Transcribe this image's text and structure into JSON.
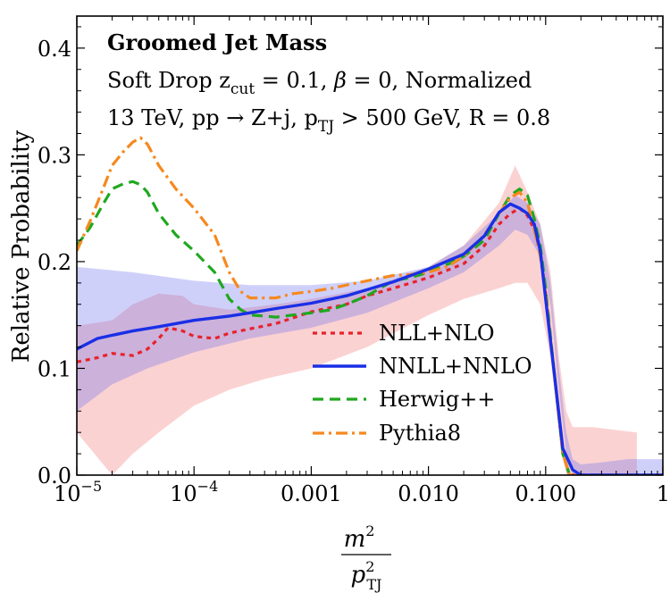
{
  "chart_data": {
    "type": "line",
    "title": "Groomed Jet Mass",
    "subtitle_lines": [
      "Soft Drop z_cut = 0.1, β = 0, Normalized",
      "13 TeV, pp → Z+j, p_TJ > 500 GeV, R = 0.8"
    ],
    "subtitle_parts": {
      "line1_a": "Soft Drop z",
      "line1_sub": "cut",
      "line1_b": " = 0.1, ",
      "line1_beta": "β",
      "line1_c": " = 0, Normalized",
      "line2_a": "13 TeV, pp → Z+j, p",
      "line2_sub": "TJ",
      "line2_b": " > 500 GeV, R = 0.8"
    },
    "ylabel": "Relative Probability",
    "xlabel": "m²/p²_TJ",
    "xlabel_parts": {
      "num": "m",
      "num_sup": "2",
      "den": "p",
      "den_sup": "2",
      "den_sub": "TJ"
    },
    "xscale": "log",
    "xlim": [
      1e-05,
      1
    ],
    "ylim": [
      0,
      0.43
    ],
    "xticks": [
      {
        "value": 1e-05,
        "label": "10",
        "exp": "−5"
      },
      {
        "value": 0.0001,
        "label": "10",
        "exp": "−4"
      },
      {
        "value": 0.001,
        "label": "0.001"
      },
      {
        "value": 0.01,
        "label": "0.010"
      },
      {
        "value": 0.1,
        "label": "0.100"
      },
      {
        "value": 1,
        "label": "1"
      }
    ],
    "yticks": [
      {
        "value": 0.0,
        "label": "0.0"
      },
      {
        "value": 0.1,
        "label": "0.1"
      },
      {
        "value": 0.2,
        "label": "0.2"
      },
      {
        "value": 0.3,
        "label": "0.3"
      },
      {
        "value": 0.4,
        "label": "0.4"
      }
    ],
    "legend_position": "center-right",
    "bands": [
      {
        "name": "NNLL+NNLO uncertainty",
        "color": "#6a6ef0",
        "opacity": 0.32,
        "upper": [
          [
            1e-05,
            0.195
          ],
          [
            3e-05,
            0.19
          ],
          [
            0.0001,
            0.182
          ],
          [
            0.0003,
            0.178
          ],
          [
            0.001,
            0.178
          ],
          [
            0.003,
            0.182
          ],
          [
            0.01,
            0.195
          ],
          [
            0.02,
            0.215
          ],
          [
            0.04,
            0.245
          ],
          [
            0.055,
            0.262
          ],
          [
            0.07,
            0.255
          ],
          [
            0.09,
            0.235
          ],
          [
            0.11,
            0.18
          ],
          [
            0.13,
            0.1
          ],
          [
            0.15,
            0.04
          ],
          [
            0.17,
            0.015
          ],
          [
            0.2,
            0.01
          ],
          [
            0.3,
            0.012
          ],
          [
            0.5,
            0.015
          ],
          [
            1,
            0.015
          ]
        ],
        "lower": [
          [
            1e-05,
            0.06
          ],
          [
            2e-05,
            0.085
          ],
          [
            4e-05,
            0.1
          ],
          [
            0.0001,
            0.115
          ],
          [
            0.0003,
            0.128
          ],
          [
            0.001,
            0.138
          ],
          [
            0.003,
            0.152
          ],
          [
            0.01,
            0.175
          ],
          [
            0.02,
            0.19
          ],
          [
            0.04,
            0.215
          ],
          [
            0.055,
            0.23
          ],
          [
            0.07,
            0.225
          ],
          [
            0.09,
            0.205
          ],
          [
            0.11,
            0.16
          ],
          [
            0.13,
            0.08
          ],
          [
            0.15,
            0.02
          ],
          [
            0.17,
            0.0
          ],
          [
            0.2,
            0.0
          ],
          [
            1,
            0.0
          ]
        ]
      },
      {
        "name": "NLL+NLO uncertainty",
        "color": "#f26a6a",
        "opacity": 0.3,
        "upper": [
          [
            1e-05,
            0.14
          ],
          [
            2e-05,
            0.145
          ],
          [
            3e-05,
            0.16
          ],
          [
            5e-05,
            0.17
          ],
          [
            8e-05,
            0.168
          ],
          [
            0.0001,
            0.16
          ],
          [
            0.0002,
            0.155
          ],
          [
            0.0005,
            0.16
          ],
          [
            0.001,
            0.165
          ],
          [
            0.003,
            0.175
          ],
          [
            0.01,
            0.195
          ],
          [
            0.02,
            0.215
          ],
          [
            0.04,
            0.255
          ],
          [
            0.055,
            0.29
          ],
          [
            0.07,
            0.265
          ],
          [
            0.09,
            0.235
          ],
          [
            0.11,
            0.19
          ],
          [
            0.13,
            0.11
          ],
          [
            0.15,
            0.06
          ],
          [
            0.17,
            0.045
          ],
          [
            0.25,
            0.045
          ],
          [
            0.6,
            0.04
          ]
        ],
        "lower": [
          [
            1e-05,
            0.04
          ],
          [
            2e-05,
            0.0
          ],
          [
            3e-05,
            0.02
          ],
          [
            5e-05,
            0.04
          ],
          [
            0.0001,
            0.065
          ],
          [
            0.0002,
            0.08
          ],
          [
            0.0004,
            0.09
          ],
          [
            0.001,
            0.1
          ],
          [
            0.003,
            0.12
          ],
          [
            0.01,
            0.15
          ],
          [
            0.02,
            0.165
          ],
          [
            0.04,
            0.175
          ],
          [
            0.055,
            0.18
          ],
          [
            0.07,
            0.18
          ],
          [
            0.09,
            0.16
          ],
          [
            0.11,
            0.11
          ],
          [
            0.13,
            0.04
          ],
          [
            0.15,
            0.0
          ],
          [
            0.6,
            0.0
          ]
        ]
      }
    ],
    "series": [
      {
        "name": "NLL+NLO",
        "color": "#e8222b",
        "dash": "5,5",
        "points": [
          [
            1e-05,
            0.106
          ],
          [
            1.5e-05,
            0.11
          ],
          [
            2e-05,
            0.114
          ],
          [
            3e-05,
            0.112
          ],
          [
            4e-05,
            0.118
          ],
          [
            5e-05,
            0.128
          ],
          [
            6e-05,
            0.138
          ],
          [
            8e-05,
            0.135
          ],
          [
            0.0001,
            0.13
          ],
          [
            0.00015,
            0.128
          ],
          [
            0.0002,
            0.133
          ],
          [
            0.0003,
            0.137
          ],
          [
            0.0005,
            0.142
          ],
          [
            0.001,
            0.153
          ],
          [
            0.002,
            0.16
          ],
          [
            0.003,
            0.168
          ],
          [
            0.005,
            0.175
          ],
          [
            0.01,
            0.185
          ],
          [
            0.02,
            0.198
          ],
          [
            0.03,
            0.215
          ],
          [
            0.04,
            0.235
          ],
          [
            0.05,
            0.245
          ],
          [
            0.06,
            0.25
          ],
          [
            0.07,
            0.243
          ],
          [
            0.08,
            0.23
          ],
          [
            0.09,
            0.21
          ],
          [
            0.1,
            0.17
          ],
          [
            0.12,
            0.09
          ],
          [
            0.14,
            0.02
          ],
          [
            0.16,
            0.0
          ],
          [
            1,
            0.0
          ]
        ]
      },
      {
        "name": "NNLL+NNLO",
        "color": "#1a2fe6",
        "dash": "",
        "points": [
          [
            1e-05,
            0.118
          ],
          [
            1.5e-05,
            0.128
          ],
          [
            2e-05,
            0.131
          ],
          [
            3e-05,
            0.135
          ],
          [
            5e-05,
            0.139
          ],
          [
            0.0001,
            0.145
          ],
          [
            0.0002,
            0.149
          ],
          [
            0.0003,
            0.152
          ],
          [
            0.0005,
            0.156
          ],
          [
            0.001,
            0.161
          ],
          [
            0.002,
            0.168
          ],
          [
            0.005,
            0.181
          ],
          [
            0.01,
            0.193
          ],
          [
            0.02,
            0.207
          ],
          [
            0.03,
            0.224
          ],
          [
            0.04,
            0.246
          ],
          [
            0.05,
            0.254
          ],
          [
            0.06,
            0.25
          ],
          [
            0.07,
            0.245
          ],
          [
            0.08,
            0.235
          ],
          [
            0.09,
            0.21
          ],
          [
            0.1,
            0.165
          ],
          [
            0.12,
            0.09
          ],
          [
            0.14,
            0.025
          ],
          [
            0.17,
            0.005
          ],
          [
            0.2,
            0.0
          ],
          [
            1,
            0.0
          ]
        ]
      },
      {
        "name": "Herwig++",
        "color": "#1fa81f",
        "dash": "12,7",
        "points": [
          [
            1e-05,
            0.215
          ],
          [
            1.3e-05,
            0.232
          ],
          [
            1.7e-05,
            0.255
          ],
          [
            2e-05,
            0.268
          ],
          [
            2.5e-05,
            0.273
          ],
          [
            3e-05,
            0.275
          ],
          [
            3.5e-05,
            0.272
          ],
          [
            4e-05,
            0.265
          ],
          [
            5e-05,
            0.245
          ],
          [
            7e-05,
            0.225
          ],
          [
            0.0001,
            0.21
          ],
          [
            0.00015,
            0.19
          ],
          [
            0.0002,
            0.165
          ],
          [
            0.00025,
            0.155
          ],
          [
            0.0003,
            0.15
          ],
          [
            0.0004,
            0.149
          ],
          [
            0.0005,
            0.148
          ],
          [
            0.0007,
            0.15
          ],
          [
            0.001,
            0.152
          ],
          [
            0.0015,
            0.155
          ],
          [
            0.002,
            0.16
          ],
          [
            0.003,
            0.168
          ],
          [
            0.004,
            0.176
          ],
          [
            0.005,
            0.182
          ],
          [
            0.007,
            0.185
          ],
          [
            0.01,
            0.19
          ],
          [
            0.015,
            0.198
          ],
          [
            0.02,
            0.205
          ],
          [
            0.03,
            0.22
          ],
          [
            0.04,
            0.245
          ],
          [
            0.05,
            0.262
          ],
          [
            0.06,
            0.268
          ],
          [
            0.07,
            0.262
          ],
          [
            0.08,
            0.24
          ],
          [
            0.09,
            0.215
          ],
          [
            0.1,
            0.175
          ],
          [
            0.12,
            0.09
          ],
          [
            0.14,
            0.02
          ],
          [
            0.16,
            0.0
          ],
          [
            1,
            0.0
          ]
        ]
      },
      {
        "name": "Pythia8",
        "color": "#f5891f",
        "dash": "13,5,3,5",
        "points": [
          [
            1e-05,
            0.21
          ],
          [
            1.3e-05,
            0.238
          ],
          [
            1.7e-05,
            0.27
          ],
          [
            2e-05,
            0.29
          ],
          [
            2.5e-05,
            0.303
          ],
          [
            3e-05,
            0.312
          ],
          [
            3.5e-05,
            0.316
          ],
          [
            4e-05,
            0.31
          ],
          [
            5e-05,
            0.29
          ],
          [
            7e-05,
            0.268
          ],
          [
            0.0001,
            0.25
          ],
          [
            0.00015,
            0.225
          ],
          [
            0.0002,
            0.19
          ],
          [
            0.00025,
            0.172
          ],
          [
            0.0003,
            0.166
          ],
          [
            0.0005,
            0.166
          ],
          [
            0.0007,
            0.17
          ],
          [
            0.001,
            0.172
          ],
          [
            0.0015,
            0.175
          ],
          [
            0.002,
            0.178
          ],
          [
            0.003,
            0.182
          ],
          [
            0.005,
            0.187
          ],
          [
            0.007,
            0.188
          ],
          [
            0.01,
            0.19
          ],
          [
            0.015,
            0.196
          ],
          [
            0.02,
            0.205
          ],
          [
            0.03,
            0.225
          ],
          [
            0.04,
            0.245
          ],
          [
            0.05,
            0.26
          ],
          [
            0.06,
            0.265
          ],
          [
            0.07,
            0.255
          ],
          [
            0.08,
            0.23
          ],
          [
            0.09,
            0.205
          ],
          [
            0.1,
            0.17
          ],
          [
            0.12,
            0.09
          ],
          [
            0.14,
            0.02
          ],
          [
            0.16,
            0.0
          ],
          [
            1,
            0.0
          ]
        ]
      }
    ]
  }
}
